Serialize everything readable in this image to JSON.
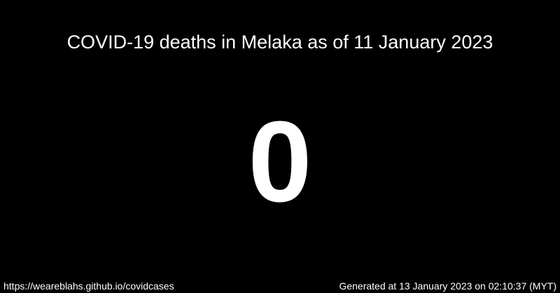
{
  "card": {
    "title": "COVID-19 deaths in Melaka as of 11 January 2023",
    "value": "0",
    "footer_url": "https://weareblahs.github.io/covidcases",
    "footer_generated": "Generated at 13 January 2023 on 02:10:37 (MYT)"
  },
  "colors": {
    "background": "#000000",
    "text": "#ffffff"
  }
}
